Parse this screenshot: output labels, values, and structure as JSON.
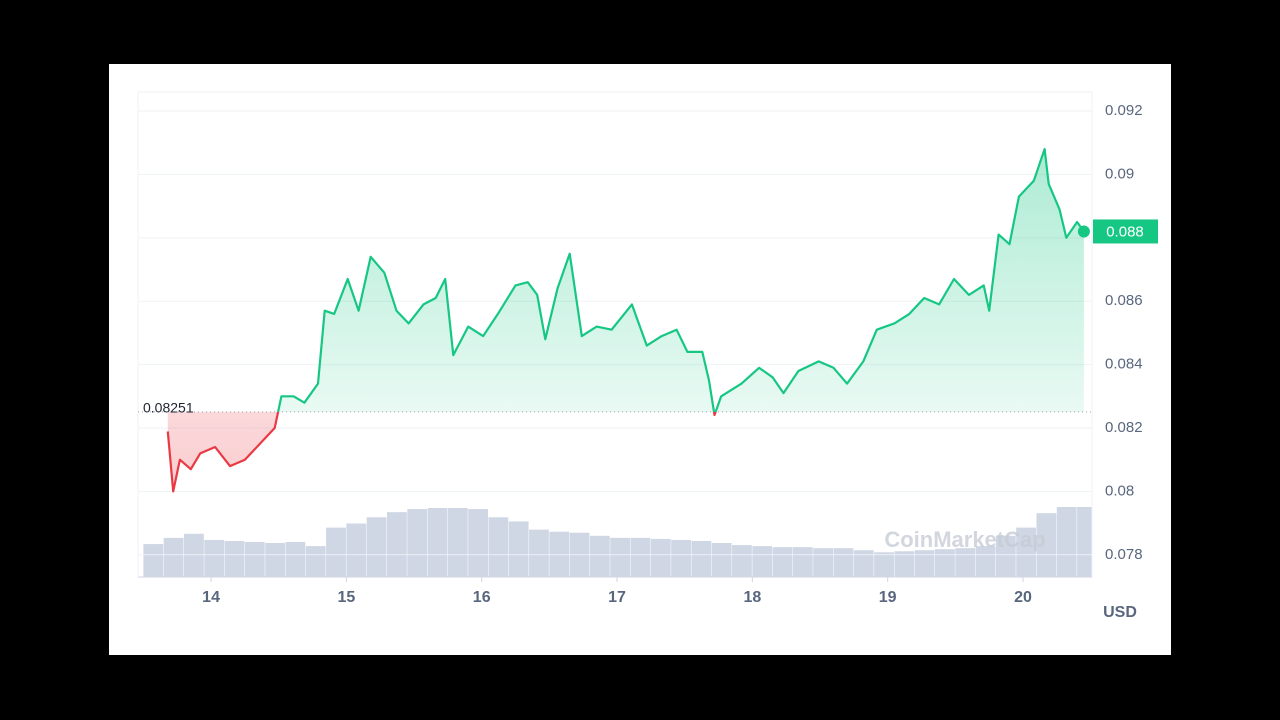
{
  "chart_data": {
    "type": "line",
    "x": [
      13.68,
      13.72,
      13.77,
      13.85,
      13.92,
      14.03,
      14.14,
      14.25,
      14.36,
      14.47,
      14.52,
      14.61,
      14.69,
      14.79,
      14.84,
      14.91,
      15.01,
      15.09,
      15.18,
      15.28,
      15.37,
      15.46,
      15.57,
      15.66,
      15.73,
      15.79,
      15.9,
      16.01,
      16.12,
      16.25,
      16.34,
      16.41,
      16.47,
      16.56,
      16.65,
      16.74,
      16.85,
      16.96,
      17.11,
      17.22,
      17.33,
      17.44,
      17.52,
      17.63,
      17.68,
      17.72,
      17.77,
      17.92,
      18.05,
      18.15,
      18.23,
      18.34,
      18.49,
      18.6,
      18.7,
      18.82,
      18.92,
      19.05,
      19.16,
      19.27,
      19.38,
      19.49,
      19.6,
      19.71,
      19.75,
      19.82,
      19.9,
      19.97,
      20.08,
      20.16,
      20.19,
      20.27,
      20.32,
      20.4,
      20.45
    ],
    "values": [
      0.08189,
      0.08,
      0.081,
      0.0807,
      0.0812,
      0.0814,
      0.0808,
      0.081,
      0.0815,
      0.082,
      0.083,
      0.083,
      0.0828,
      0.0834,
      0.0857,
      0.0856,
      0.0867,
      0.0857,
      0.0874,
      0.0869,
      0.0857,
      0.0853,
      0.0859,
      0.0861,
      0.0867,
      0.0843,
      0.0852,
      0.0849,
      0.0856,
      0.0865,
      0.0866,
      0.0862,
      0.0848,
      0.0864,
      0.0875,
      0.0849,
      0.0852,
      0.0851,
      0.0859,
      0.0846,
      0.0849,
      0.0851,
      0.0844,
      0.0844,
      0.0835,
      0.08241,
      0.083,
      0.0834,
      0.0839,
      0.0836,
      0.0831,
      0.0838,
      0.0841,
      0.0839,
      0.0834,
      0.0841,
      0.0851,
      0.0853,
      0.0856,
      0.0861,
      0.0859,
      0.0867,
      0.0862,
      0.0865,
      0.0857,
      0.0881,
      0.0878,
      0.0893,
      0.0898,
      0.0908,
      0.0897,
      0.0889,
      0.088,
      0.0885,
      0.0882
    ],
    "up_color": "#16c784",
    "down_color": "#ea3943",
    "baseline": 0.08251,
    "last_price": {
      "value": 0.0882,
      "label": "0.088"
    },
    "volume": {
      "x": [
        13.5,
        13.65,
        13.8,
        13.95,
        14.1,
        14.25,
        14.4,
        14.55,
        14.7,
        14.85,
        15.0,
        15.15,
        15.3,
        15.45,
        15.6,
        15.75,
        15.9,
        16.05,
        16.2,
        16.35,
        16.5,
        16.65,
        16.8,
        16.95,
        17.1,
        17.25,
        17.4,
        17.55,
        17.7,
        17.85,
        18.0,
        18.15,
        18.3,
        18.45,
        18.6,
        18.75,
        18.9,
        19.05,
        19.2,
        19.35,
        19.5,
        19.65,
        19.8,
        19.95,
        20.1,
        20.25,
        20.4
      ],
      "values": [
        32,
        38,
        42,
        36,
        35,
        34,
        33,
        34,
        30,
        48,
        52,
        58,
        63,
        66,
        67,
        67,
        66,
        58,
        54,
        46,
        44,
        43,
        40,
        38,
        38,
        37,
        36,
        35,
        33,
        31,
        30,
        29,
        29,
        28,
        28,
        26,
        24,
        25,
        26,
        27,
        28,
        30,
        40,
        48,
        62,
        68,
        68
      ],
      "color": "#cfd6e4"
    },
    "xlim": [
      13.46,
      20.51
    ],
    "xticks": [
      14,
      15,
      16,
      17,
      18,
      19,
      20
    ],
    "ylim": [
      0.0773,
      0.0926
    ],
    "yticks": [
      0.078,
      0.08,
      0.082,
      0.084,
      0.086,
      0.088,
      0.09,
      0.092
    ],
    "grid": true,
    "unit_label": "USD",
    "watermark": "CoinMarketCap"
  }
}
